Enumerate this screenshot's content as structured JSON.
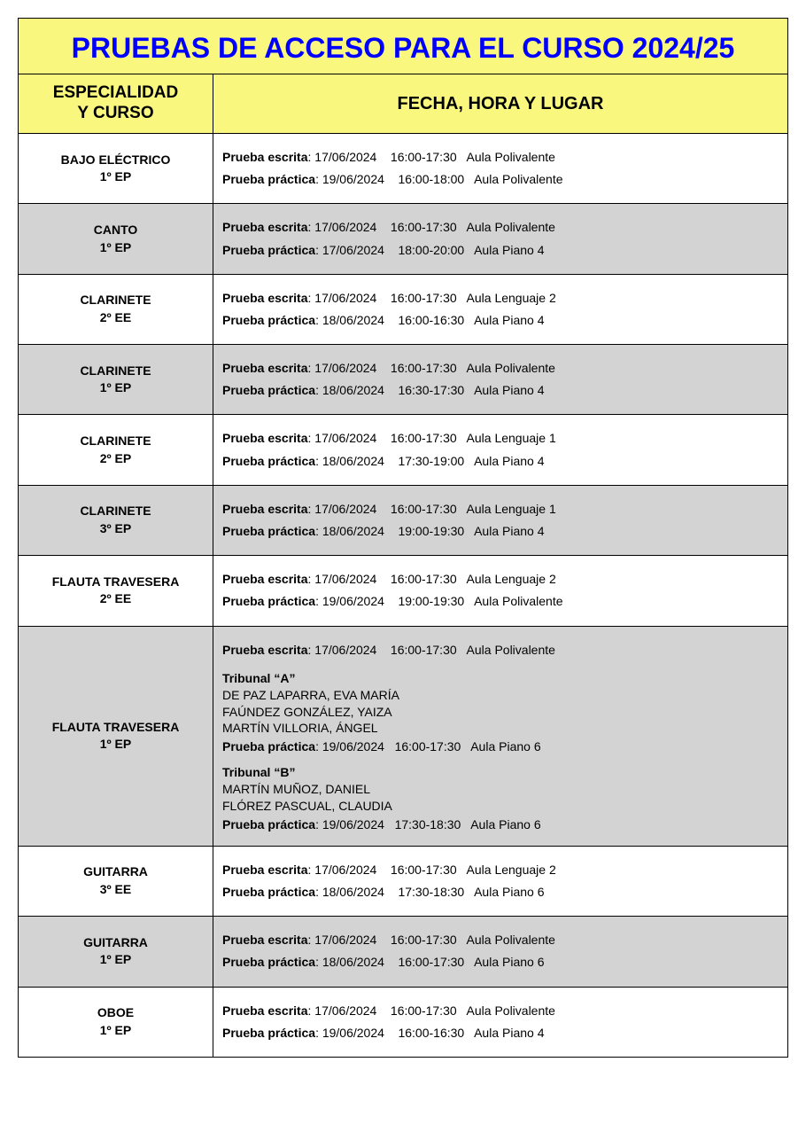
{
  "title": "PRUEBAS DE ACCESO PARA EL CURSO 2024/25",
  "headers": {
    "left": "ESPECIALIDAD\nY CURSO",
    "right": "FECHA, HORA Y LUGAR"
  },
  "labels": {
    "escrita": "Prueba escrita",
    "practica": "Prueba práctica"
  },
  "colors": {
    "title_bg": "#f9f77e",
    "title_fg": "#0000ff",
    "row_gray": "#d3d3d3",
    "row_white": "#ffffff",
    "border": "#000000"
  },
  "rows": [
    {
      "bg": "white",
      "spec_name": "BAJO ELÉCTRICO",
      "spec_course": "1º EP",
      "escrita": {
        "date": "17/06/2024",
        "time": "16:00-17:30",
        "room": "Aula Polivalente"
      },
      "practica": {
        "date": "19/06/2024",
        "time": "16:00-18:00",
        "room": "Aula Polivalente"
      }
    },
    {
      "bg": "gray",
      "spec_name": "CANTO",
      "spec_course": "1º EP",
      "escrita": {
        "date": "17/06/2024",
        "time": "16:00-17:30",
        "room": "Aula Polivalente"
      },
      "practica": {
        "date": "17/06/2024",
        "time": "18:00-20:00",
        "room": "Aula Piano 4"
      }
    },
    {
      "bg": "white",
      "spec_name": "CLARINETE",
      "spec_course": "2º EE",
      "escrita": {
        "date": "17/06/2024",
        "time": "16:00-17:30",
        "room": "Aula Lenguaje 2"
      },
      "practica": {
        "date": "18/06/2024",
        "time": "16:00-16:30",
        "room": "Aula Piano 4"
      }
    },
    {
      "bg": "gray",
      "spec_name": "CLARINETE",
      "spec_course": "1º EP",
      "escrita": {
        "date": "17/06/2024",
        "time": "16:00-17:30",
        "room": "Aula Polivalente"
      },
      "practica": {
        "date": "18/06/2024",
        "time": "16:30-17:30",
        "room": "Aula Piano 4"
      }
    },
    {
      "bg": "white",
      "spec_name": "CLARINETE",
      "spec_course": "2º EP",
      "escrita": {
        "date": "17/06/2024",
        "time": "16:00-17:30",
        "room": "Aula Lenguaje 1"
      },
      "practica": {
        "date": "18/06/2024",
        "time": "17:30-19:00",
        "room": "Aula Piano 4"
      }
    },
    {
      "bg": "gray",
      "spec_name": "CLARINETE",
      "spec_course": "3º EP",
      "escrita": {
        "date": "17/06/2024",
        "time": "16:00-17:30",
        "room": "Aula Lenguaje 1"
      },
      "practica": {
        "date": "18/06/2024",
        "time": "19:00-19:30",
        "room": "Aula Piano 4"
      }
    },
    {
      "bg": "white",
      "spec_name": "FLAUTA TRAVESERA",
      "spec_course": "2º EE",
      "escrita": {
        "date": "17/06/2024",
        "time": "16:00-17:30",
        "room": "Aula Lenguaje 2"
      },
      "practica": {
        "date": "19/06/2024",
        "time": "19:00-19:30",
        "room": "Aula Polivalente"
      }
    },
    {
      "bg": "gray",
      "spec_name": "FLAUTA TRAVESERA",
      "spec_course": "1º EP",
      "escrita": {
        "date": "17/06/2024",
        "time": "16:00-17:30",
        "room": "Aula Polivalente"
      },
      "tribunals": [
        {
          "title": "Tribunal “A”",
          "members": [
            "DE PAZ LAPARRA, EVA MARÍA",
            "FAÚNDEZ GONZÁLEZ, YAIZA",
            "MARTÍN VILLORIA, ÁNGEL"
          ],
          "practica": {
            "date": "19/06/2024",
            "time": "16:00-17:30",
            "room": "Aula Piano 6"
          }
        },
        {
          "title": "Tribunal “B”",
          "members": [
            "MARTÍN MUÑOZ, DANIEL",
            "FLÓREZ PASCUAL, CLAUDIA"
          ],
          "practica": {
            "date": "19/06/2024",
            "time": "17:30-18:30",
            "room": "Aula Piano 6"
          }
        }
      ]
    },
    {
      "bg": "white",
      "spec_name": "GUITARRA",
      "spec_course": "3º EE",
      "escrita": {
        "date": "17/06/2024",
        "time": "16:00-17:30",
        "room": "Aula Lenguaje 2"
      },
      "practica": {
        "date": "18/06/2024",
        "time": "17:30-18:30",
        "room": "Aula Piano 6"
      }
    },
    {
      "bg": "gray",
      "spec_name": "GUITARRA",
      "spec_course": "1º EP",
      "escrita": {
        "date": "17/06/2024",
        "time": "16:00-17:30",
        "room": "Aula Polivalente"
      },
      "practica": {
        "date": "18/06/2024",
        "time": "16:00-17:30",
        "room": "Aula Piano 6"
      }
    },
    {
      "bg": "white",
      "spec_name": "OBOE",
      "spec_course": "1º EP",
      "escrita": {
        "date": "17/06/2024",
        "time": "16:00-17:30",
        "room": "Aula Polivalente"
      },
      "practica": {
        "date": "19/06/2024",
        "time": "16:00-16:30",
        "room": "Aula Piano 4"
      }
    }
  ]
}
